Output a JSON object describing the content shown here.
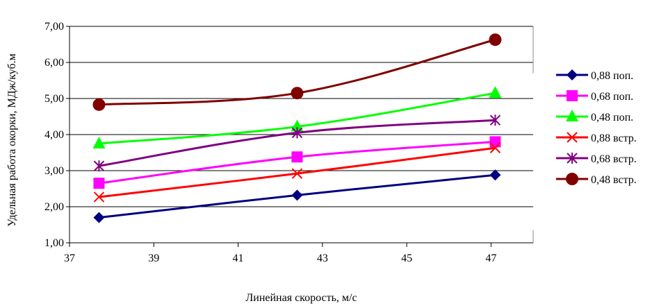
{
  "chart_data": {
    "type": "line",
    "xlabel": "Линейная скорость, м/с",
    "ylabel": "Удельная работа окорки, МДж/куб.м",
    "xlim": [
      37,
      48
    ],
    "ylim": [
      1,
      7
    ],
    "x_ticks": [
      "37",
      "39",
      "41",
      "43",
      "45",
      "47"
    ],
    "x_tick_values": [
      37,
      39,
      41,
      43,
      45,
      47
    ],
    "y_ticks": [
      "1,00",
      "2,00",
      "3,00",
      "4,00",
      "5,00",
      "6,00",
      "7,00"
    ],
    "y_tick_values": [
      1,
      2,
      3,
      4,
      5,
      6,
      7
    ],
    "grid": "horizontal",
    "legend_position": "right",
    "series": [
      {
        "name": "0,88 поп.",
        "color": "#000080",
        "marker": "diamond",
        "x": [
          37.7,
          42.4,
          47.1
        ],
        "y": [
          1.7,
          2.32,
          2.88
        ]
      },
      {
        "name": "0,68 поп.",
        "color": "#ff00ff",
        "marker": "square",
        "x": [
          37.7,
          42.4,
          47.1
        ],
        "y": [
          2.65,
          3.38,
          3.8
        ]
      },
      {
        "name": "0,48 поп.",
        "color": "#00ff00",
        "marker": "triangle",
        "x": [
          37.7,
          42.4,
          47.1
        ],
        "y": [
          3.75,
          4.22,
          5.15
        ]
      },
      {
        "name": "0,88 встр.",
        "color": "#ff0000",
        "marker": "x",
        "x": [
          37.7,
          42.4,
          47.1
        ],
        "y": [
          2.27,
          2.92,
          3.63
        ]
      },
      {
        "name": "0,68 встр.",
        "color": "#800080",
        "marker": "star",
        "x": [
          37.7,
          42.4,
          47.1
        ],
        "y": [
          3.13,
          4.05,
          4.4
        ]
      },
      {
        "name": "0,48 встр.",
        "color": "#800000",
        "marker": "circle",
        "x": [
          37.7,
          42.4,
          47.1
        ],
        "y": [
          4.83,
          5.15,
          6.63
        ]
      }
    ]
  }
}
